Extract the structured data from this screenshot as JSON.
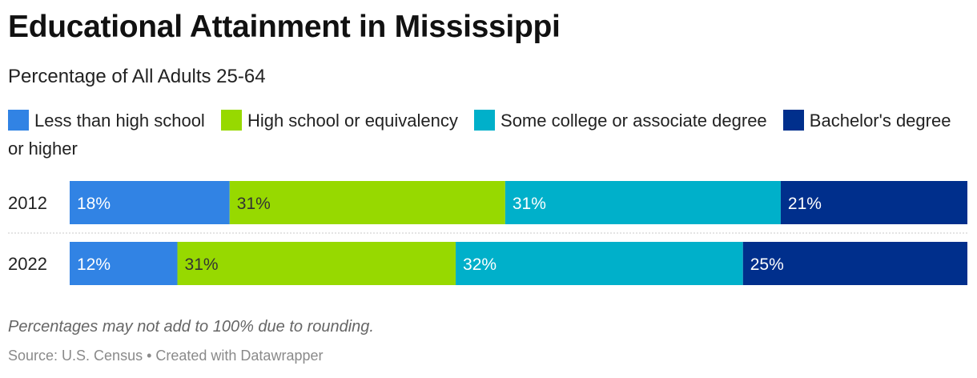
{
  "title": "Educational Attainment in Mississippi",
  "subtitle": "Percentage of All Adults 25-64",
  "footnote": "Percentages may not add to 100% due to rounding.",
  "source": "Source: U.S. Census • Created with Datawrapper",
  "chart_data": {
    "type": "bar",
    "orientation": "horizontal",
    "stacked": true,
    "title": "Educational Attainment in Mississippi",
    "subtitle": "Percentage of All Adults 25-64",
    "categories": [
      "2012",
      "2022"
    ],
    "series": [
      {
        "name": "Less than high school",
        "color": "#3183e4",
        "label_color": "#ffffff",
        "values": [
          18,
          12
        ]
      },
      {
        "name": "High school or equivalency",
        "color": "#97d900",
        "label_color": "#333333",
        "values": [
          31,
          31
        ]
      },
      {
        "name": "Some college or associate degree",
        "color": "#00b0ca",
        "label_color": "#ffffff",
        "values": [
          31,
          32
        ]
      },
      {
        "name": "Bachelor's degree or higher",
        "color": "#002f8c",
        "label_color": "#ffffff",
        "values": [
          21,
          25
        ]
      }
    ],
    "value_suffix": "%",
    "legend_position": "top",
    "grid": false
  }
}
